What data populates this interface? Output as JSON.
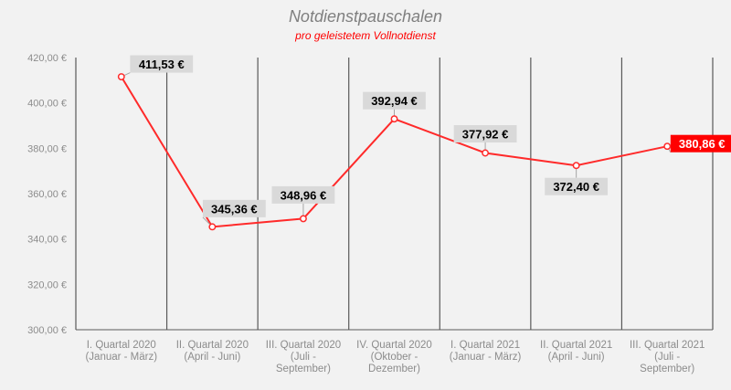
{
  "chart_data": {
    "type": "line",
    "title": "Notdienstpauschalen",
    "subtitle": "pro geleistetem Vollnotdienst",
    "categories": [
      [
        "I. Quartal 2020",
        "(Januar - März)"
      ],
      [
        "II. Quartal 2020",
        "(April - Juni)"
      ],
      [
        "III. Quartal 2020",
        "(Juli -",
        "September)"
      ],
      [
        "IV. Quartal 2020",
        "(Oktober -",
        "Dezember)"
      ],
      [
        "I. Quartal 2021",
        "(Januar - März)"
      ],
      [
        "II. Quartal 2021",
        "(April - Juni)"
      ],
      [
        "III. Quartal 2021",
        "(Juli -",
        "September)"
      ]
    ],
    "values": [
      411.53,
      345.36,
      348.96,
      392.94,
      377.92,
      372.4,
      380.86
    ],
    "data_labels": [
      "411,53 €",
      "345,36 €",
      "348,96 €",
      "392,94 €",
      "377,92 €",
      "372,40 €",
      "380,86 €"
    ],
    "ylim": [
      300,
      420
    ],
    "yticks": [
      300,
      320,
      340,
      360,
      380,
      400,
      420
    ],
    "ytick_labels": [
      "300,00 €",
      "320,00 €",
      "340,00 €",
      "360,00 €",
      "380,00 €",
      "400,00 €",
      "420,00 €"
    ],
    "grid": "vertical",
    "colors": {
      "line": "#ff2a2a",
      "grid": "#595959",
      "label_bg": "#d9d9d9",
      "highlight_bg": "#ff0000",
      "axis_text": "#8c8c8c"
    }
  }
}
